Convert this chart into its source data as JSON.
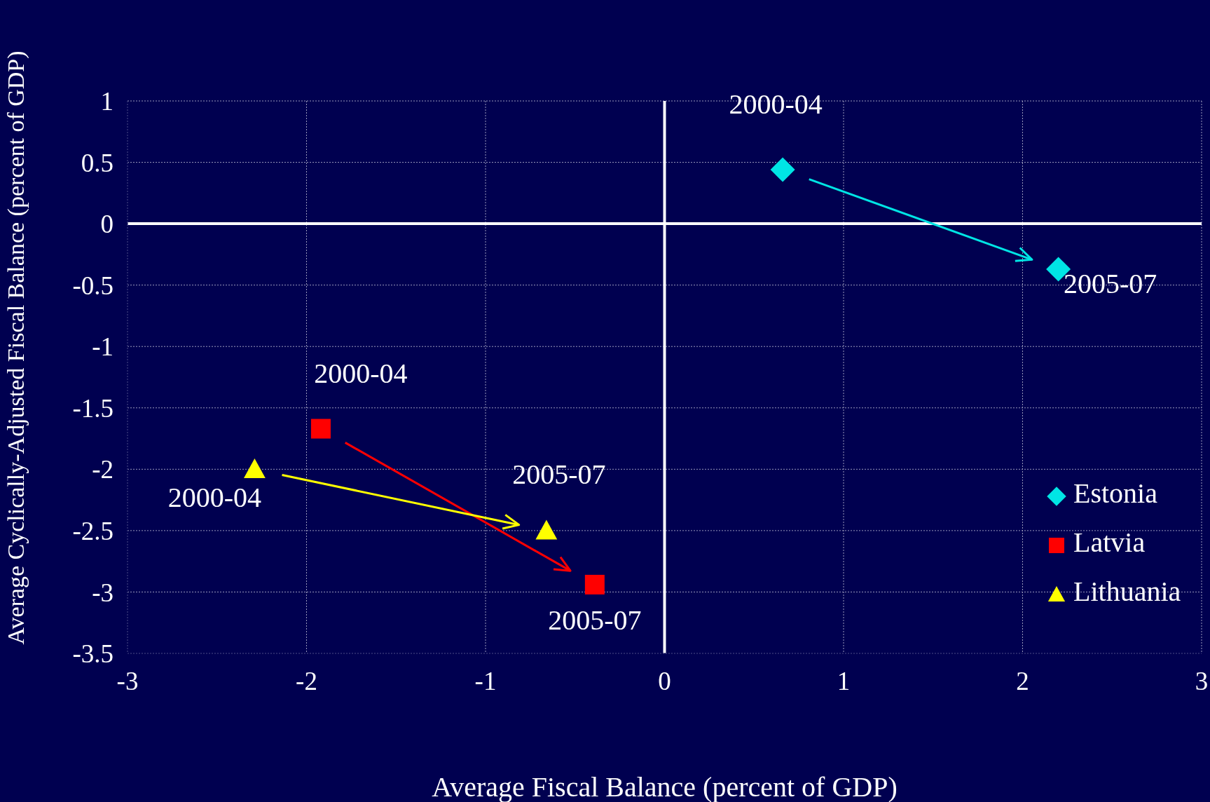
{
  "chart_data": {
    "type": "scatter",
    "xlabel": "Average Fiscal Balance (percent of GDP)",
    "ylabel": "Average Cyclically-Adjusted Fiscal Balance (percent of GDP)",
    "xlim": [
      -3,
      3
    ],
    "xticks": [
      -3,
      -2,
      -1,
      0,
      1,
      2,
      3
    ],
    "ylim": [
      -3.5,
      1
    ],
    "yticks": [
      -3.5,
      -3,
      -2.5,
      -2,
      -1.5,
      -1,
      -0.5,
      0,
      0.5,
      1
    ],
    "grid": true,
    "legend": "right",
    "series": [
      {
        "name": "Estonia",
        "color": "#00e5e5",
        "marker": "diamond",
        "x": [
          0.66,
          2.2
        ],
        "values": [
          0.44,
          -0.37
        ]
      },
      {
        "name": "Latvia",
        "color": "#ff0000",
        "marker": "square",
        "x": [
          -1.92,
          -0.39
        ],
        "values": [
          -1.67,
          -2.94
        ]
      },
      {
        "name": "Lithuania",
        "color": "#ffff00",
        "marker": "triangle",
        "x": [
          -2.29,
          -0.66
        ],
        "values": [
          -2.0,
          -2.5
        ]
      }
    ],
    "annotations": [
      {
        "text": "2000-04",
        "x": 0.66,
        "y": 0.44
      },
      {
        "text": "2005-07",
        "x": 2.2,
        "y": -0.37
      },
      {
        "text": "2000-04",
        "x": -1.92,
        "y": -1.67
      },
      {
        "text": "2005-07",
        "x": -0.39,
        "y": -2.94
      },
      {
        "text": "2000-04",
        "x": -2.29,
        "y": -2.0
      },
      {
        "text": "2005-07",
        "x": -0.66,
        "y": -2.5
      }
    ]
  }
}
